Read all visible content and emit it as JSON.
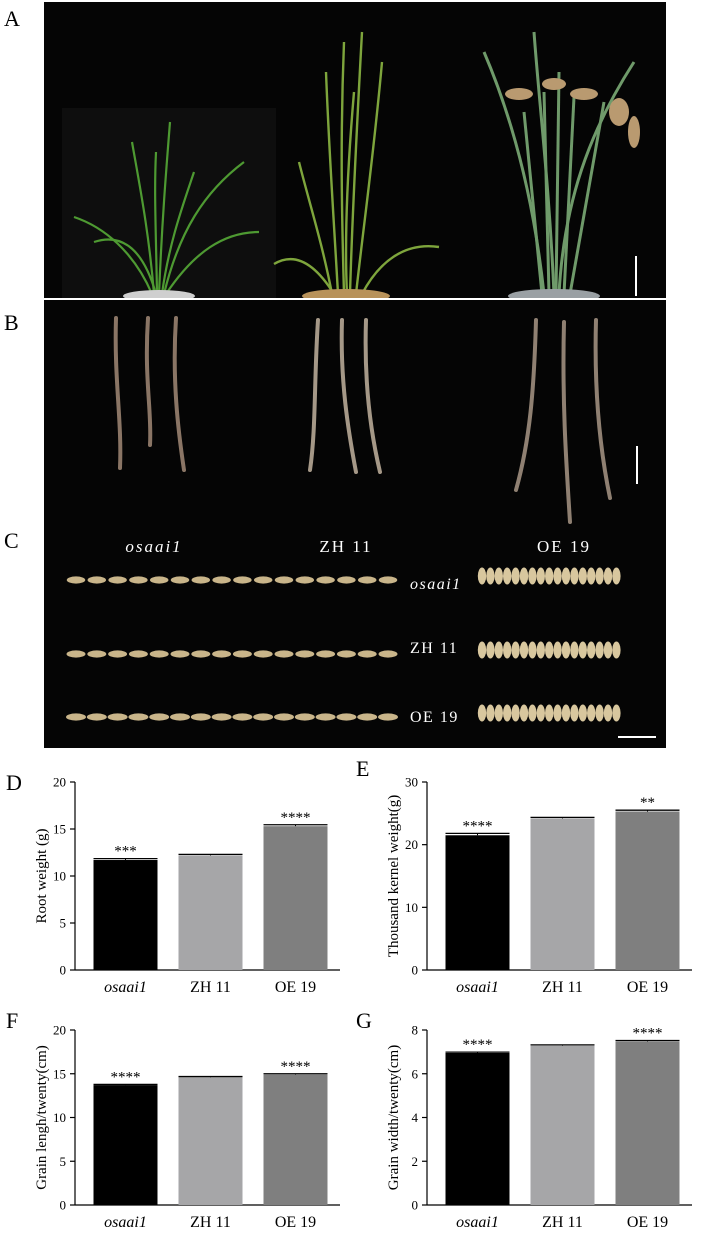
{
  "figure": {
    "panels": {
      "A": "A",
      "B": "B",
      "C": "C",
      "D": "D",
      "E": "E",
      "F": "F",
      "G": "G"
    },
    "genotype_labels": [
      "osaai1",
      "ZH 11",
      "OE 19"
    ],
    "grain_row_labels": [
      "osaai1",
      "ZH 11",
      "OE 19"
    ]
  },
  "colors": {
    "bar_osaai1": "#000000",
    "bar_zh11": "#a6a6a8",
    "bar_oe19": "#7f7f7f",
    "photo_bg": "#050505",
    "plant_green": "#5a9a3a",
    "root_brown": "#8a7565",
    "grain_tan": "#c9b58a"
  },
  "chart_data": [
    {
      "panel": "D",
      "type": "bar",
      "categories": [
        "osaai1",
        "ZH 11",
        "OE 19"
      ],
      "values": [
        11.7,
        12.2,
        15.3
      ],
      "errors": [
        0.15,
        0.1,
        0.15
      ],
      "significance": [
        "***",
        "",
        "****"
      ],
      "ylabel": "Root weight (g)",
      "ylim": [
        0,
        20
      ],
      "yticks": [
        "0",
        "5",
        "10",
        "15",
        "20"
      ]
    },
    {
      "panel": "E",
      "type": "bar",
      "categories": [
        "osaai1",
        "ZH 11",
        "OE 19"
      ],
      "values": [
        21.5,
        24.2,
        25.3
      ],
      "errors": [
        0.3,
        0.15,
        0.2
      ],
      "significance": [
        "****",
        "",
        "**"
      ],
      "ylabel": "Thousand kernel weight(g)",
      "ylim": [
        0,
        30
      ],
      "yticks": [
        "0",
        "10",
        "20",
        "30"
      ]
    },
    {
      "panel": "F",
      "type": "bar",
      "categories": [
        "osaai1",
        "ZH 11",
        "OE 19"
      ],
      "values": [
        13.7,
        14.6,
        14.9
      ],
      "errors": [
        0.08,
        0.08,
        0.1
      ],
      "significance": [
        "****",
        "",
        "****"
      ],
      "ylabel": "Grain lengh/twenty(cm)",
      "ylim": [
        0,
        20
      ],
      "yticks": [
        "0",
        "5",
        "10",
        "15",
        "20"
      ]
    },
    {
      "panel": "G",
      "type": "bar",
      "categories": [
        "osaai1",
        "ZH 11",
        "OE 19"
      ],
      "values": [
        6.95,
        7.28,
        7.48
      ],
      "errors": [
        0.04,
        0.04,
        0.04
      ],
      "significance": [
        "****",
        "",
        "****"
      ],
      "ylabel": "Grain width/twenty(cm)",
      "ylim": [
        0,
        8
      ],
      "yticks": [
        "0",
        "2",
        "4",
        "6",
        "8"
      ]
    }
  ]
}
